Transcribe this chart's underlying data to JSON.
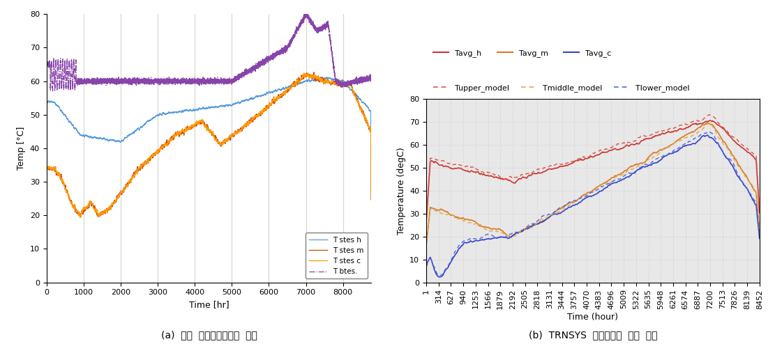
{
  "left": {
    "title": "(a)  선형  최적운전계획법  결과",
    "xlabel": "Time [hr]",
    "ylabel": "Temp [°C]",
    "xlim": [
      0,
      8760
    ],
    "ylim": [
      0,
      80
    ],
    "xticks": [
      0,
      1000,
      2000,
      3000,
      4000,
      5000,
      6000,
      7000,
      8000
    ],
    "yticks": [
      0,
      10,
      20,
      30,
      40,
      50,
      60,
      70,
      80
    ],
    "legend": [
      "T stes h",
      "T stes m",
      "T stes c",
      "T btes."
    ],
    "colors": [
      "#5599dd",
      "#cc4400",
      "#ff9900",
      "#8844aa"
    ],
    "bg_color": "#ffffff"
  },
  "right": {
    "title": "(b)  TRNSYS  시뮬레이터  운전  결과",
    "xlabel": "Time (hour)",
    "ylabel": "Temperature (degC)",
    "ylim": [
      0,
      80
    ],
    "yticks": [
      0,
      10,
      20,
      30,
      40,
      50,
      60,
      70,
      80
    ],
    "xtick_labels": [
      "1",
      "314",
      "627",
      "940",
      "1253",
      "1566",
      "1879",
      "2192",
      "2505",
      "2818",
      "3131",
      "3444",
      "3757",
      "4070",
      "4383",
      "4696",
      "5009",
      "5322",
      "5635",
      "5948",
      "6261",
      "6574",
      "6887",
      "7200",
      "7513",
      "7826",
      "8139",
      "8452"
    ],
    "legend1": [
      "Tavg_h",
      "Tavg_m",
      "Tavg_c"
    ],
    "legend2": [
      "Tupper_model",
      "Tmiddle_model",
      "Tlower_model"
    ],
    "solid_colors": [
      "#cc3333",
      "#dd7722",
      "#3344cc"
    ],
    "dashed_colors": [
      "#dd5544",
      "#ddaa44",
      "#5566dd"
    ],
    "bg_color": "#e8e8e8"
  }
}
